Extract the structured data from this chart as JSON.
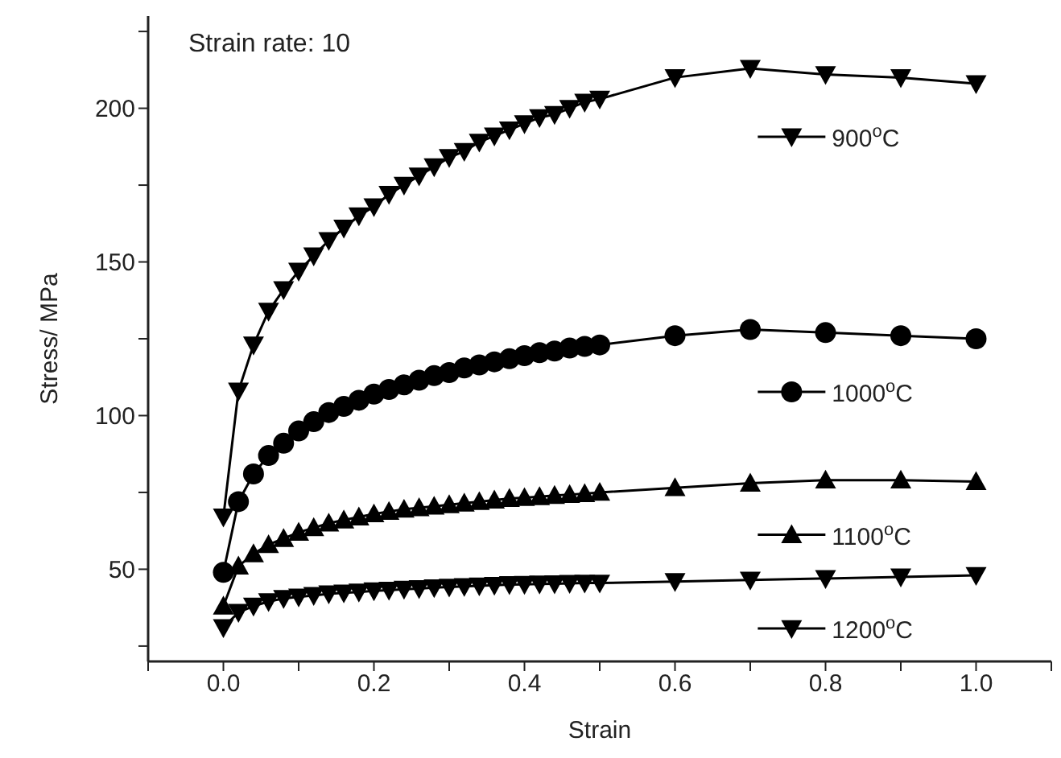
{
  "chart_data": {
    "type": "line",
    "xlabel": "Strain",
    "ylabel": "Stress/ MPa",
    "annotations": [
      "Strain rate: 10"
    ],
    "x": [
      0,
      0.02,
      0.04,
      0.06,
      0.08,
      0.1,
      0.12,
      0.14,
      0.16,
      0.18,
      0.2,
      0.22,
      0.24,
      0.26,
      0.28,
      0.3,
      0.32,
      0.34,
      0.36,
      0.38,
      0.4,
      0.42,
      0.44,
      0.46,
      0.48,
      0.5,
      0.6,
      0.7,
      0.8,
      0.9,
      1.0
    ],
    "xlim": [
      -0.1,
      1.1
    ],
    "xticks": [
      {
        "value": -0.1,
        "label": null
      },
      {
        "value": 0,
        "label": "0.0"
      },
      {
        "value": 0.1,
        "label": null
      },
      {
        "value": 0.2,
        "label": "0.2"
      },
      {
        "value": 0.3,
        "label": null
      },
      {
        "value": 0.4,
        "label": "0.4"
      },
      {
        "value": 0.5,
        "label": null
      },
      {
        "value": 0.6,
        "label": "0.6"
      },
      {
        "value": 0.7,
        "label": null
      },
      {
        "value": 0.8,
        "label": "0.8"
      },
      {
        "value": 0.9,
        "label": null
      },
      {
        "value": 1,
        "label": "1.0"
      },
      {
        "value": 1.1,
        "label": null
      }
    ],
    "ylim": [
      20,
      230
    ],
    "yticks": [
      {
        "value": 25,
        "label": null
      },
      50,
      {
        "value": 75,
        "label": null
      },
      100,
      {
        "value": 125,
        "label": null
      },
      150,
      {
        "value": 175,
        "label": null
      },
      200,
      {
        "value": 225,
        "label": null
      }
    ],
    "legend": "right",
    "line_style": "solid",
    "series": [
      {
        "name": "900$^{o}$C",
        "color": "#000000",
        "marker": "triangle-down",
        "values": [
          67,
          108,
          123,
          134,
          141,
          147,
          152,
          157,
          161,
          165,
          168,
          172,
          175,
          178,
          181,
          184,
          186,
          189,
          191,
          193,
          195,
          197,
          198,
          200,
          202,
          203,
          210,
          213,
          211,
          210,
          208
        ]
      },
      {
        "name": "1000$^{o}$C",
        "color": "#000000",
        "marker": "circle",
        "values": [
          49,
          72,
          81,
          87,
          91,
          95,
          98,
          101,
          103,
          105,
          107,
          108.5,
          110,
          111.5,
          113,
          114,
          115.5,
          116.5,
          117.5,
          118.5,
          119.5,
          120.5,
          121,
          122,
          122.5,
          123,
          126,
          128,
          127,
          126,
          125
        ]
      },
      {
        "name": "1100$^{o}$C",
        "color": "#000000",
        "marker": "triangle",
        "values": [
          38,
          51,
          55,
          58,
          60,
          62,
          63.5,
          65,
          66,
          67,
          68,
          68.8,
          69.5,
          70,
          70.5,
          71,
          71.5,
          72,
          72.5,
          73,
          73.3,
          73.6,
          74,
          74.3,
          74.6,
          75,
          76.5,
          78,
          79,
          79,
          78.5
        ]
      },
      {
        "name": "1200$^{o}$C",
        "color": "#000000",
        "marker": "triangle-down",
        "values": [
          31,
          36,
          38,
          39.5,
          40.5,
          41,
          41.5,
          42,
          42.3,
          42.6,
          43,
          43.2,
          43.5,
          43.7,
          44,
          44.2,
          44.4,
          44.6,
          44.8,
          45,
          45.1,
          45.2,
          45.3,
          45.4,
          45.5,
          45.5,
          46,
          46.5,
          47,
          47.5,
          48
        ]
      }
    ]
  }
}
